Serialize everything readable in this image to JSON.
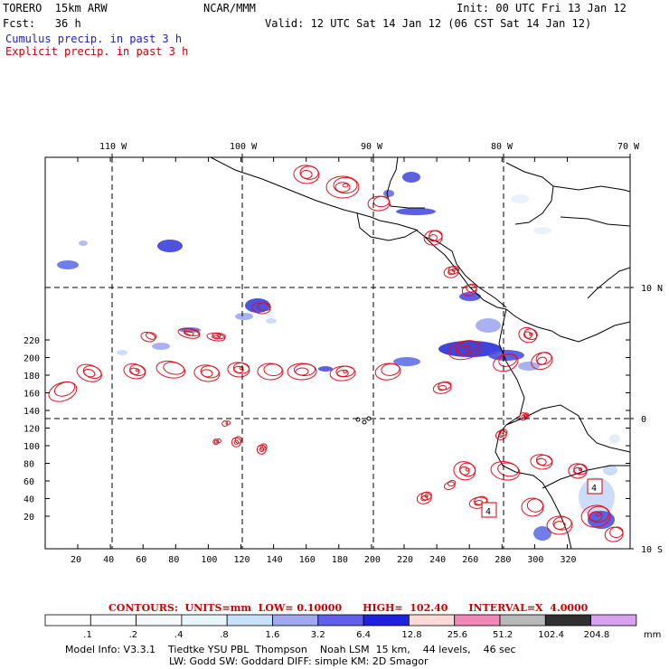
{
  "header": {
    "model": "TORERO  15km ARW",
    "org": "NCAR/MMM",
    "init": "Init: 00 UTC Fri 13 Jan 12",
    "fcst": "Fcst:   36 h",
    "valid": "Valid: 12 UTC Sat 14 Jan 12 (06 CST Sat 14 Jan 12)",
    "legend_cumulus": "Cumulus precip. in past 3 h",
    "legend_explicit": "Explicit precip. in past 3 h"
  },
  "colors": {
    "cumulus": "#2020cc",
    "explicit": "#cc0000",
    "contour": "#e0101e",
    "grid": "#000000"
  },
  "axes": {
    "top_lon_labels": [
      "110 W",
      "100 W",
      "90 W",
      "80 W",
      "70 W"
    ],
    "right_lat_labels": [
      "10 N",
      "0",
      "10 S"
    ],
    "x_ticks": [
      "20",
      "40",
      "60",
      "80",
      "100",
      "120",
      "140",
      "160",
      "180",
      "200",
      "220",
      "240",
      "260",
      "280",
      "300",
      "320"
    ],
    "y_ticks": [
      "20",
      "40",
      "60",
      "80",
      "100",
      "120",
      "140",
      "160",
      "180",
      "200",
      "220"
    ]
  },
  "map_labels": [
    "4",
    "4"
  ],
  "footer": {
    "contour_info": "CONTOURS:  UNITS=mm  LOW= 0.10000      HIGH=  102.40      INTERVAL=X  4.0000",
    "colorbar_labels": [
      ".1",
      ".2",
      ".4",
      ".8",
      "1.6",
      "3.2",
      "6.4",
      "12.8",
      "25.6",
      "51.2",
      "102.4",
      "204.8"
    ],
    "colorbar_unit": "mm",
    "colorbar_colors": [
      "#ffffff",
      "#ffffff",
      "#f4f8fb",
      "#e8f6f9",
      "#c8e0f8",
      "#a0a8f0",
      "#6060e8",
      "#2020e0",
      "#ffd8d8",
      "#f088b8",
      "#b8b8b8",
      "#303030",
      "#d8a0f0"
    ],
    "model_info_1": "Model Info: V3.3.1    Tiedtke YSU PBL  Thompson    Noah LSM  15 km,    44 levels,    46 sec",
    "model_info_2": "LW: Godd SW: Goddard DIFF: simple KM: 2D Smagor"
  }
}
